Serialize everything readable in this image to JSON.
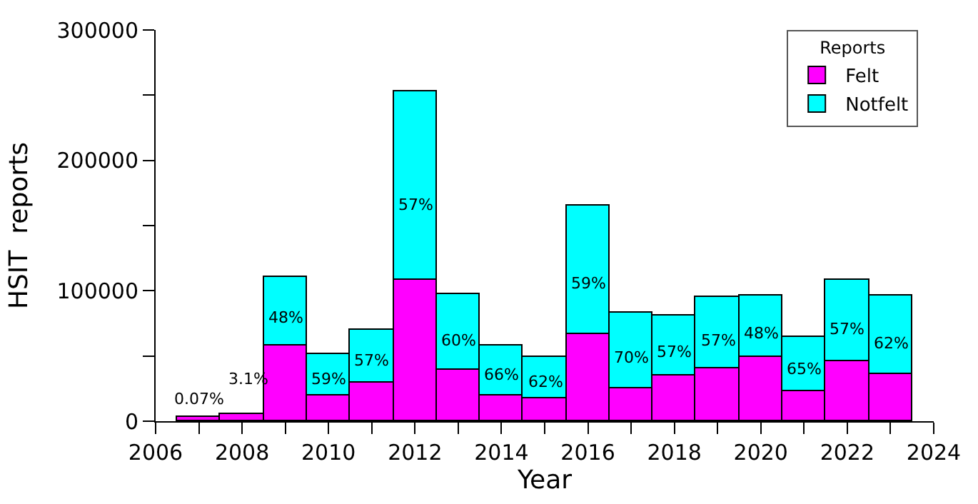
{
  "chart_data": {
    "type": "bar",
    "stacked": true,
    "xlabel": "Year",
    "ylabel": "HSIT  reports",
    "legend_title": "Reports",
    "legend": "top right",
    "x": [
      2007,
      2008,
      2009,
      2010,
      2011,
      2012,
      2013,
      2014,
      2015,
      2016,
      2017,
      2018,
      2019,
      2020,
      2021,
      2022,
      2023
    ],
    "series": [
      {
        "name": "Felt",
        "color": "#ff00ff",
        "values": [
          3000,
          6000,
          58000,
          20000,
          30000,
          108000,
          39000,
          20000,
          18000,
          67000,
          25000,
          35000,
          40000,
          49000,
          23000,
          46000,
          36000
        ]
      },
      {
        "name": "Notfelt",
        "color": "#00ffff",
        "values": [
          null,
          null,
          53000,
          31000,
          40000,
          145000,
          58000,
          38000,
          31000,
          98000,
          58000,
          46000,
          55000,
          47000,
          42000,
          62000,
          60000
        ]
      }
    ],
    "annotations": [
      "0.07%",
      "3.1%",
      "48%",
      "59%",
      "57%",
      "57%",
      "60%",
      "66%",
      "62%",
      "59%",
      "70%",
      "57%",
      "57%",
      "48%",
      "65%",
      "57%",
      "62%"
    ],
    "xlim": [
      2006,
      2024
    ],
    "xticks": [
      2006,
      {
        "value": 2007,
        "label": null
      },
      2008,
      {
        "value": 2009,
        "label": null
      },
      2010,
      {
        "value": 2011,
        "label": null
      },
      2012,
      {
        "value": 2013,
        "label": null
      },
      2014,
      {
        "value": 2015,
        "label": null
      },
      2016,
      {
        "value": 2017,
        "label": null
      },
      2018,
      {
        "value": 2019,
        "label": null
      },
      2020,
      {
        "value": 2021,
        "label": null
      },
      2022,
      {
        "value": 2023,
        "label": null
      },
      2024
    ],
    "ylim": [
      0,
      300000
    ],
    "yticks": [
      0,
      {
        "value": 50000,
        "label": null
      },
      100000,
      {
        "value": 150000,
        "label": null
      },
      200000,
      {
        "value": 250000,
        "label": null
      },
      300000
    ]
  }
}
